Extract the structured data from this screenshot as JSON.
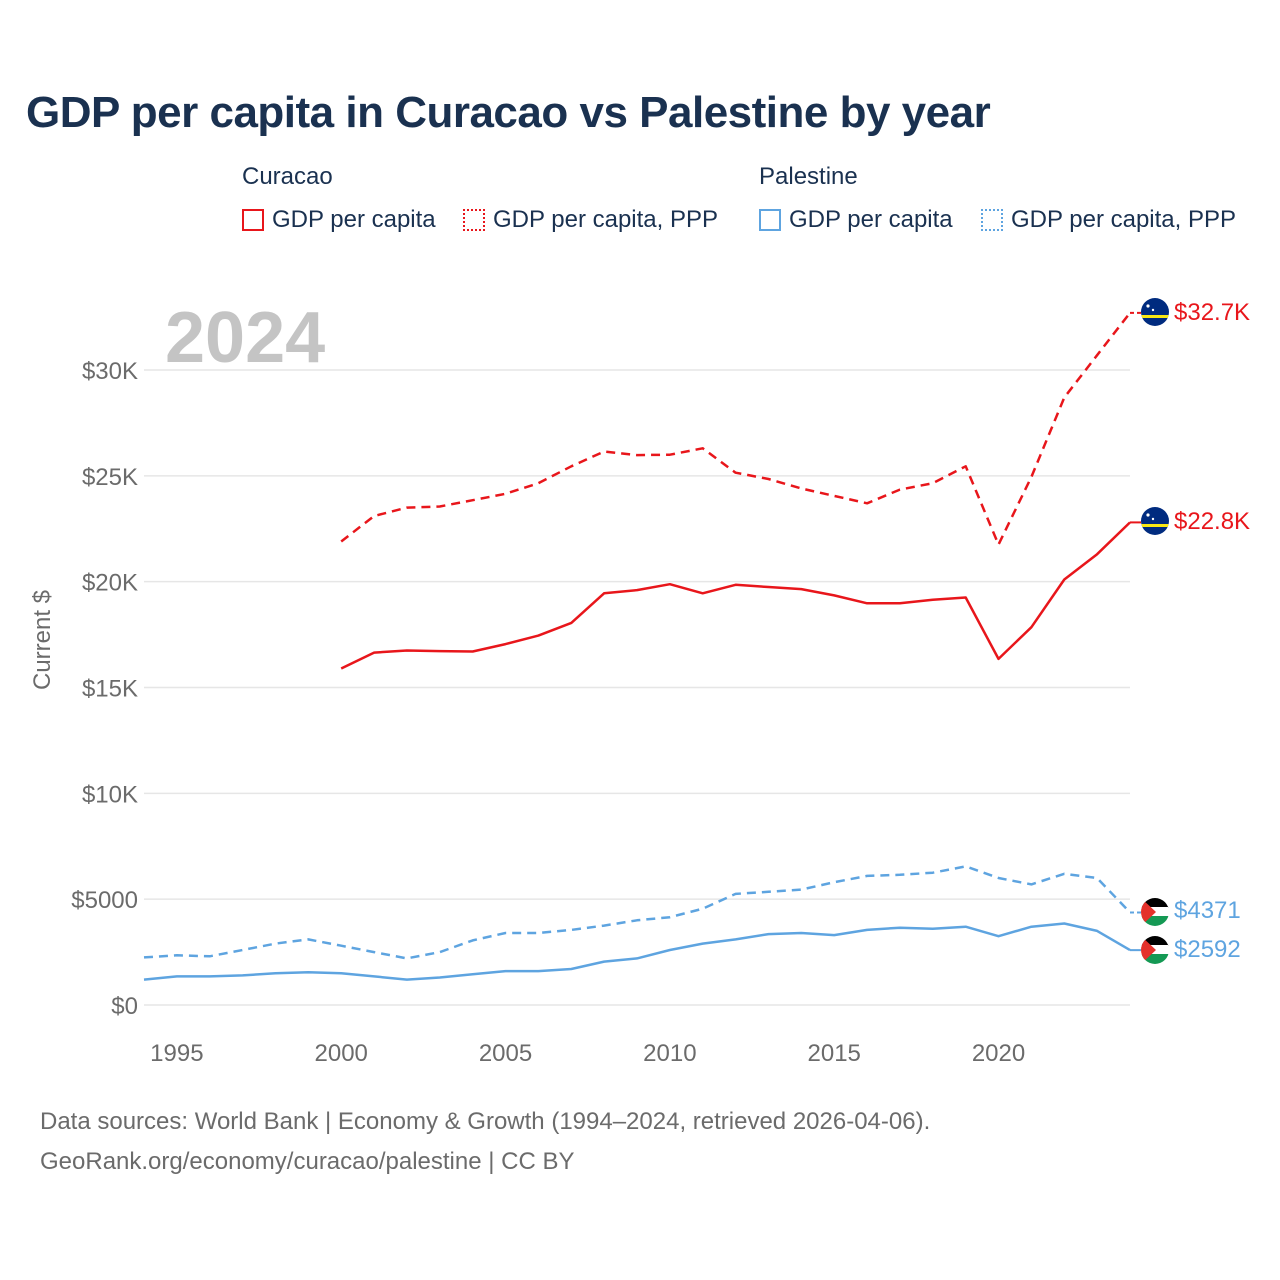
{
  "title": "GDP per capita in Curacao vs Palestine by year",
  "legend": {
    "group1": "Curacao",
    "group2": "Palestine",
    "item1": "GDP per capita",
    "item2": "GDP per capita, PPP",
    "item3": "GDP per capita",
    "item4": "GDP per capita, PPP"
  },
  "footer": {
    "line1": "Data sources: World Bank | Economy & Growth (1994–2024, retrieved 2026-04-06).",
    "line2": "GeoRank.org/economy/curacao/palestine | CC BY"
  },
  "colors": {
    "curacao": "#e8161b",
    "palestine": "#5ea4e0",
    "grid": "#e6e6e6",
    "axis_text": "#6b6b6b",
    "year": "#c4c4c4"
  },
  "chart_data": {
    "type": "line",
    "year_label": "2024",
    "ylabel": "Current $",
    "xlim": [
      1994,
      2024
    ],
    "ylim": [
      0,
      30000
    ],
    "x_ticks": [
      {
        "value": 1995,
        "label": "1995"
      },
      {
        "value": 2000,
        "label": "2000"
      },
      {
        "value": 2005,
        "label": "2005"
      },
      {
        "value": 2010,
        "label": "2010"
      },
      {
        "value": 2015,
        "label": "2015"
      },
      {
        "value": 2020,
        "label": "2020"
      }
    ],
    "y_ticks": [
      {
        "value": 0,
        "label": "$0"
      },
      {
        "value": 5000,
        "label": "$5000"
      },
      {
        "value": 10000,
        "label": "$10K"
      },
      {
        "value": 15000,
        "label": "$15K"
      },
      {
        "value": 20000,
        "label": "$20K"
      },
      {
        "value": 25000,
        "label": "$25K"
      },
      {
        "value": 30000,
        "label": "$30K"
      }
    ],
    "series": [
      {
        "name": "Curacao GDP per capita, PPP",
        "country": "curacao",
        "style": "dashed",
        "end_label": "$32.7K",
        "x": [
          2000,
          2001,
          2002,
          2003,
          2004,
          2005,
          2006,
          2007,
          2008,
          2009,
          2010,
          2011,
          2012,
          2013,
          2014,
          2015,
          2016,
          2017,
          2018,
          2019,
          2020,
          2021,
          2022,
          2023,
          2024
        ],
        "values": [
          21900,
          23100,
          23500,
          23550,
          23850,
          24150,
          24650,
          25450,
          26150,
          25980,
          26000,
          26300,
          25150,
          24850,
          24400,
          24050,
          23700,
          24350,
          24650,
          25450,
          21750,
          24950,
          28700,
          30700,
          32700
        ]
      },
      {
        "name": "Curacao GDP per capita",
        "country": "curacao",
        "style": "solid",
        "end_label": "$22.8K",
        "x": [
          2000,
          2001,
          2002,
          2003,
          2004,
          2005,
          2006,
          2007,
          2008,
          2009,
          2010,
          2011,
          2012,
          2013,
          2014,
          2015,
          2016,
          2017,
          2018,
          2019,
          2020,
          2021,
          2022,
          2023,
          2024
        ],
        "values": [
          15900,
          16650,
          16750,
          16720,
          16700,
          17050,
          17450,
          18050,
          19450,
          19600,
          19880,
          19450,
          19850,
          19750,
          19650,
          19350,
          18980,
          18980,
          19150,
          19250,
          16350,
          17850,
          20100,
          21300,
          22800
        ]
      },
      {
        "name": "Palestine GDP per capita, PPP",
        "country": "palestine",
        "style": "dashed",
        "end_label": "$4371",
        "x": [
          1994,
          1995,
          1996,
          1997,
          1998,
          1999,
          2000,
          2001,
          2002,
          2003,
          2004,
          2005,
          2006,
          2007,
          2008,
          2009,
          2010,
          2011,
          2012,
          2013,
          2014,
          2015,
          2016,
          2017,
          2018,
          2019,
          2020,
          2021,
          2022,
          2023,
          2024
        ],
        "values": [
          2250,
          2350,
          2300,
          2600,
          2900,
          3100,
          2800,
          2500,
          2200,
          2500,
          3050,
          3400,
          3400,
          3550,
          3750,
          4000,
          4150,
          4550,
          5250,
          5350,
          5450,
          5800,
          6100,
          6150,
          6250,
          6550,
          6000,
          5700,
          6200,
          6000,
          4371
        ]
      },
      {
        "name": "Palestine GDP per capita",
        "country": "palestine",
        "style": "solid",
        "end_label": "$2592",
        "x": [
          1994,
          1995,
          1996,
          1997,
          1998,
          1999,
          2000,
          2001,
          2002,
          2003,
          2004,
          2005,
          2006,
          2007,
          2008,
          2009,
          2010,
          2011,
          2012,
          2013,
          2014,
          2015,
          2016,
          2017,
          2018,
          2019,
          2020,
          2021,
          2022,
          2023,
          2024
        ],
        "values": [
          1200,
          1350,
          1350,
          1400,
          1500,
          1550,
          1500,
          1350,
          1200,
          1300,
          1450,
          1600,
          1600,
          1700,
          2050,
          2200,
          2600,
          2900,
          3100,
          3350,
          3400,
          3300,
          3550,
          3650,
          3600,
          3700,
          3250,
          3700,
          3850,
          3500,
          2592
        ]
      }
    ]
  }
}
